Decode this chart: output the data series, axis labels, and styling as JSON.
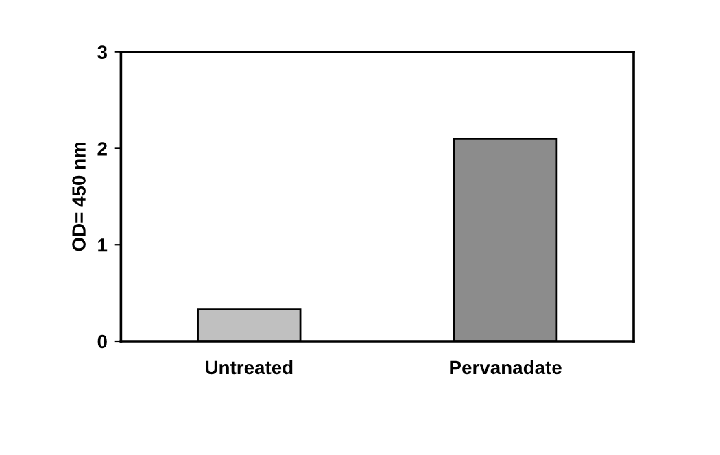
{
  "chart_data": {
    "type": "bar",
    "ylabel": "OD= 450 nm",
    "categories": [
      "Untreated",
      "Pervanadate"
    ],
    "values": [
      0.33,
      2.1
    ],
    "colors": [
      "#c0c0c0",
      "#8c8c8c"
    ],
    "ylim": [
      0,
      3
    ],
    "yticks": [
      0,
      1,
      2,
      3
    ],
    "grid": false,
    "legend": false
  }
}
